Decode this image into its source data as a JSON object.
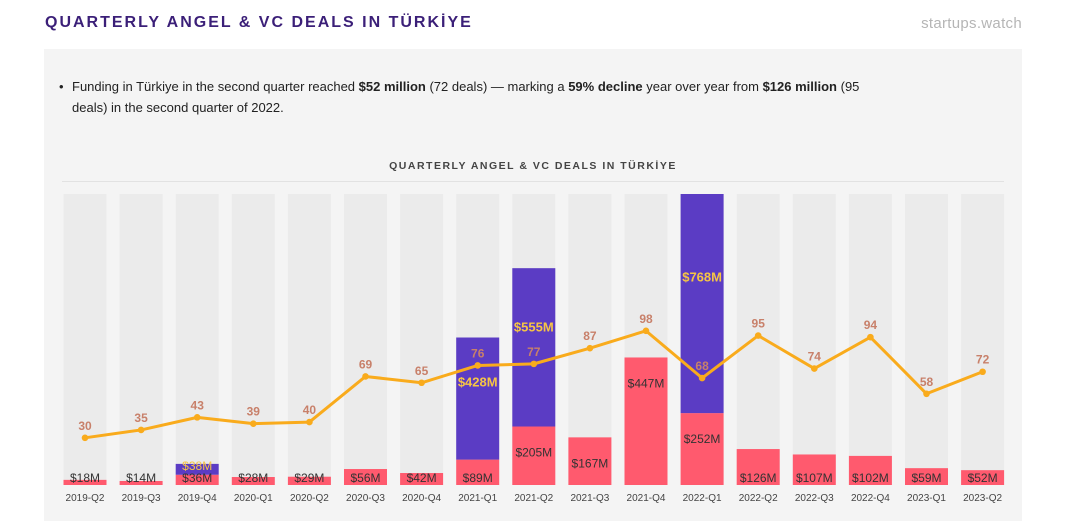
{
  "header": {
    "title": "QUARTERLY ANGEL & VC DEALS IN TÜRKİYE",
    "brand": "startups.watch"
  },
  "summary": {
    "bullet": "•",
    "t1": "Funding in Türkiye in the second quarter reached ",
    "b1": "$52 million",
    "t2": " (72 deals) — marking a ",
    "b2": "59% decline",
    "t3": " year over year from ",
    "b3": "$126 million",
    "t4": " (95 deals) in the second quarter of 2022."
  },
  "chart_data": {
    "type": "bar",
    "title": "QUARTERLY ANGEL & VC DEALS IN TÜRKİYE",
    "categories": [
      "2019-Q2",
      "2019-Q3",
      "2019-Q4",
      "2020-Q1",
      "2020-Q2",
      "2020-Q3",
      "2020-Q4",
      "2021-Q1",
      "2021-Q2",
      "2021-Q3",
      "2021-Q4",
      "2022-Q1",
      "2022-Q2",
      "2022-Q3",
      "2022-Q4",
      "2023-Q1",
      "2023-Q2"
    ],
    "series": [
      {
        "values": [
          18,
          14,
          36,
          28,
          29,
          56,
          42,
          89,
          205,
          167,
          447,
          252,
          126,
          107,
          102,
          59,
          52
        ],
        "labels": [
          "$18M",
          "$14M",
          "$36M",
          "$28M",
          "$29M",
          "$56M",
          "$42M",
          "$89M",
          "$205M",
          "$167M",
          "$447M",
          "$252M",
          "$126M",
          "$107M",
          "$102M",
          "$59M",
          "$52M"
        ],
        "color": "#ff5a6e"
      },
      {
        "values": [
          0,
          0,
          38,
          0,
          0,
          0,
          0,
          428,
          555,
          0,
          0,
          768,
          0,
          0,
          0,
          0,
          0
        ],
        "labels": [
          "",
          "",
          "$38M",
          "",
          "",
          "",
          "",
          "$428M",
          "$555M",
          "",
          "",
          "$768M",
          "",
          "",
          "",
          "",
          ""
        ],
        "color": "#5b3cc4"
      },
      {
        "type": "line",
        "values": [
          30,
          35,
          43,
          39,
          40,
          69,
          65,
          76,
          77,
          87,
          98,
          68,
          95,
          74,
          94,
          58,
          72
        ],
        "color": "#f9ab1c"
      }
    ],
    "ylim": [
      0,
      1020
    ],
    "deals_ylim": [
      0,
      185
    ],
    "grid": false,
    "colors": {
      "bg_column": "#ebebeb",
      "bar_label": "#333333",
      "top_label": "#f6c545",
      "deal_label": "#c8806a"
    }
  }
}
